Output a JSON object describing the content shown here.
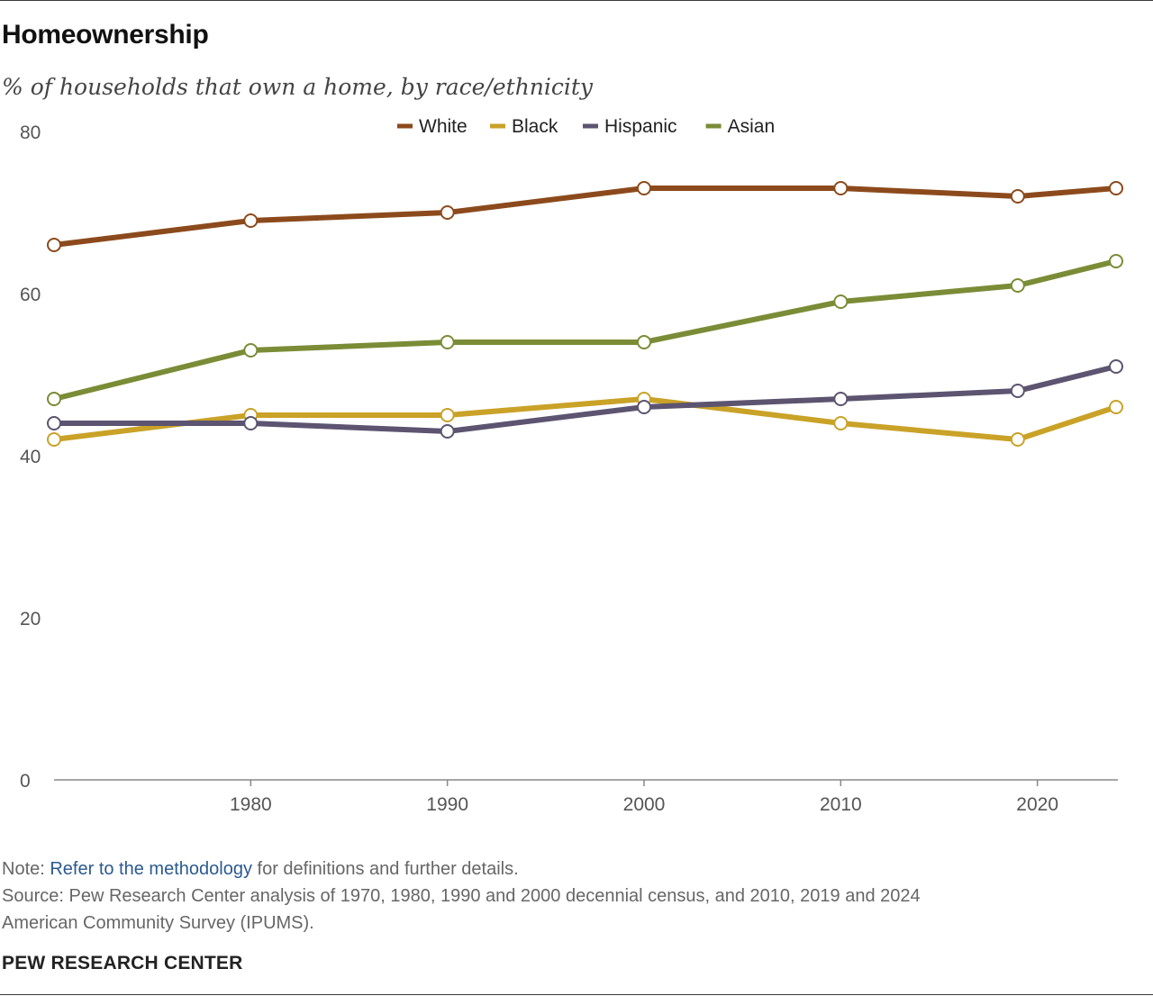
{
  "title": "Homeownership",
  "subtitle": "% of households that own a home, by race/ethnicity",
  "note": {
    "prefix": "Note: ",
    "link": "Refer to the methodology",
    "suffix": " for definitions and further details."
  },
  "source_line1": "Source: Pew Research Center analysis of 1970, 1980, 1990 and 2000 decennial census, and 2010, 2019 and 2024",
  "source_line2": "American Community Survey (IPUMS).",
  "brand": "PEW RESEARCH CENTER",
  "chart_data": {
    "type": "line",
    "title": "Homeownership",
    "subtitle": "% of households that own a home, by race/ethnicity",
    "xlabel": "",
    "ylabel": "",
    "x": [
      1970,
      1980,
      1990,
      2000,
      2010,
      2019,
      2024
    ],
    "x_ticks": [
      1980,
      1990,
      2000,
      2010,
      2020
    ],
    "x_tick_labels": [
      "1980",
      "1990",
      "2000",
      "2010",
      "2020"
    ],
    "xlim": [
      1970,
      2024
    ],
    "y_ticks": [
      0,
      20,
      40,
      60,
      80
    ],
    "y_tick_labels": [
      "0",
      "20",
      "40",
      "60",
      "80"
    ],
    "ylim": [
      0,
      80
    ],
    "grid": false,
    "legend_position": "top-center",
    "series": [
      {
        "name": "White",
        "color": "#8c4a1c",
        "values": [
          66,
          69,
          70,
          73,
          73,
          72,
          73
        ]
      },
      {
        "name": "Black",
        "color": "#c9a227",
        "values": [
          42,
          45,
          45,
          47,
          44,
          42,
          46
        ]
      },
      {
        "name": "Hispanic",
        "color": "#5c5470",
        "values": [
          44,
          44,
          43,
          46,
          47,
          48,
          51
        ]
      },
      {
        "name": "Asian",
        "color": "#7a8c36",
        "values": [
          47,
          53,
          54,
          54,
          59,
          61,
          64
        ]
      }
    ],
    "draw_order": [
      "Black",
      "Hispanic",
      "Asian",
      "White"
    ]
  }
}
